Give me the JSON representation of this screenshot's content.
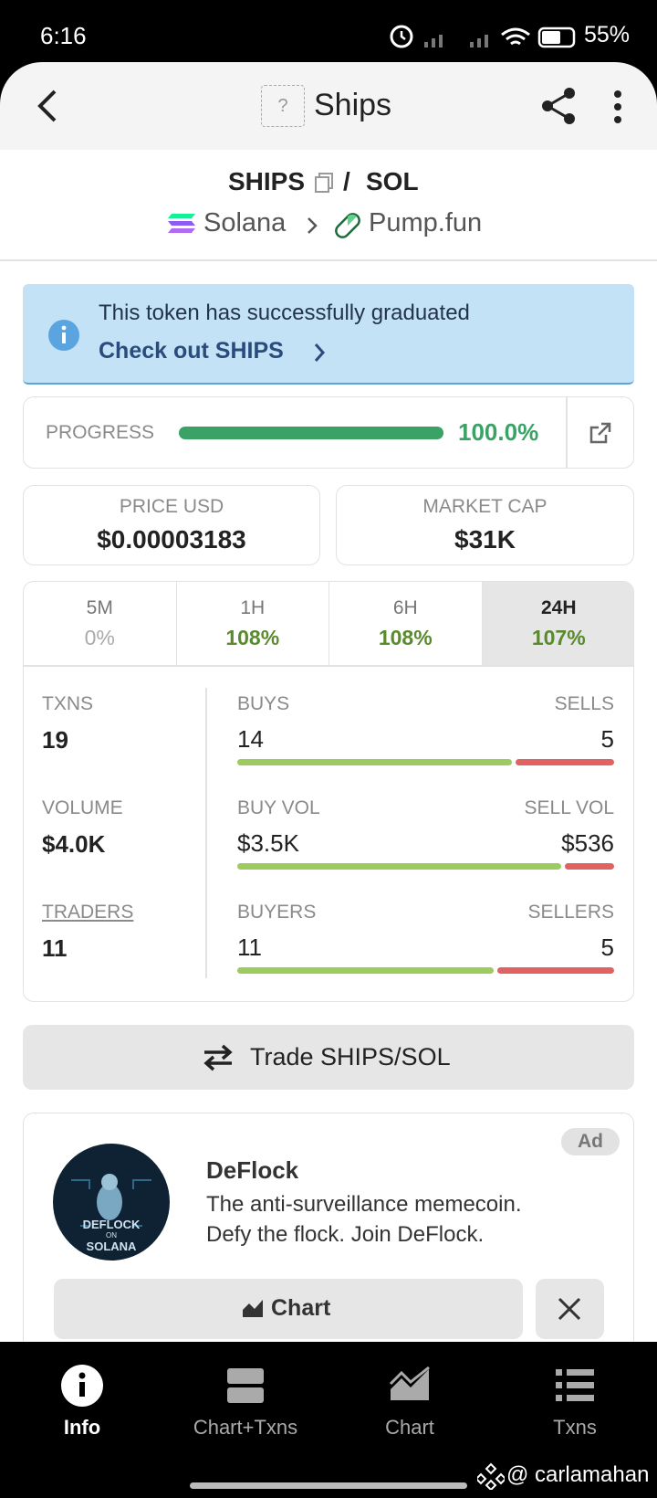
{
  "status": {
    "time": "6:16",
    "battery": "55%"
  },
  "header": {
    "icon": "?",
    "title": "Ships"
  },
  "pair": {
    "base": "SHIPS",
    "separator": "/",
    "quote": "SOL",
    "chain": "Solana",
    "dex": "Pump.fun"
  },
  "banner": {
    "text": "This token has successfully graduated",
    "link": "Check out SHIPS"
  },
  "progress": {
    "label": "PROGRESS",
    "value": "100.0%"
  },
  "price": {
    "label": "PRICE USD",
    "value": "$0.00003183"
  },
  "market_cap": {
    "label": "MARKET CAP",
    "value": "$31K"
  },
  "timeframes": [
    {
      "label": "5M",
      "change": "0%"
    },
    {
      "label": "1H",
      "change": "108%"
    },
    {
      "label": "6H",
      "change": "108%"
    },
    {
      "label": "24H",
      "change": "107%"
    }
  ],
  "stats": {
    "txns": {
      "label": "TXNS",
      "value": "19"
    },
    "buys": {
      "label": "BUYS",
      "value": "14"
    },
    "sells": {
      "label": "SELLS",
      "value": "5"
    },
    "volume": {
      "label": "VOLUME",
      "value": "$4.0K"
    },
    "buy_vol": {
      "label": "BUY VOL",
      "value": "$3.5K"
    },
    "sell_vol": {
      "label": "SELL VOL",
      "value": "$536"
    },
    "traders": {
      "label": "TRADERS",
      "value": "11"
    },
    "buyers": {
      "label": "BUYERS",
      "value": "11"
    },
    "sellers": {
      "label": "SELLERS",
      "value": "5"
    }
  },
  "trade_button": "Trade SHIPS/SOL",
  "ad": {
    "badge": "Ad",
    "name": "DeFlock",
    "description": [
      "The anti-surveillance memecoin.",
      "Defy the flock. Join DeFlock."
    ],
    "logo_text": [
      "DEFLOCK",
      "ON",
      "SOLANA"
    ],
    "chart_button": "Chart"
  },
  "nav": [
    {
      "label": "Info"
    },
    {
      "label": "Chart+Txns"
    },
    {
      "label": "Chart"
    },
    {
      "label": "Txns"
    }
  ],
  "watermark": "@ carlamahan"
}
